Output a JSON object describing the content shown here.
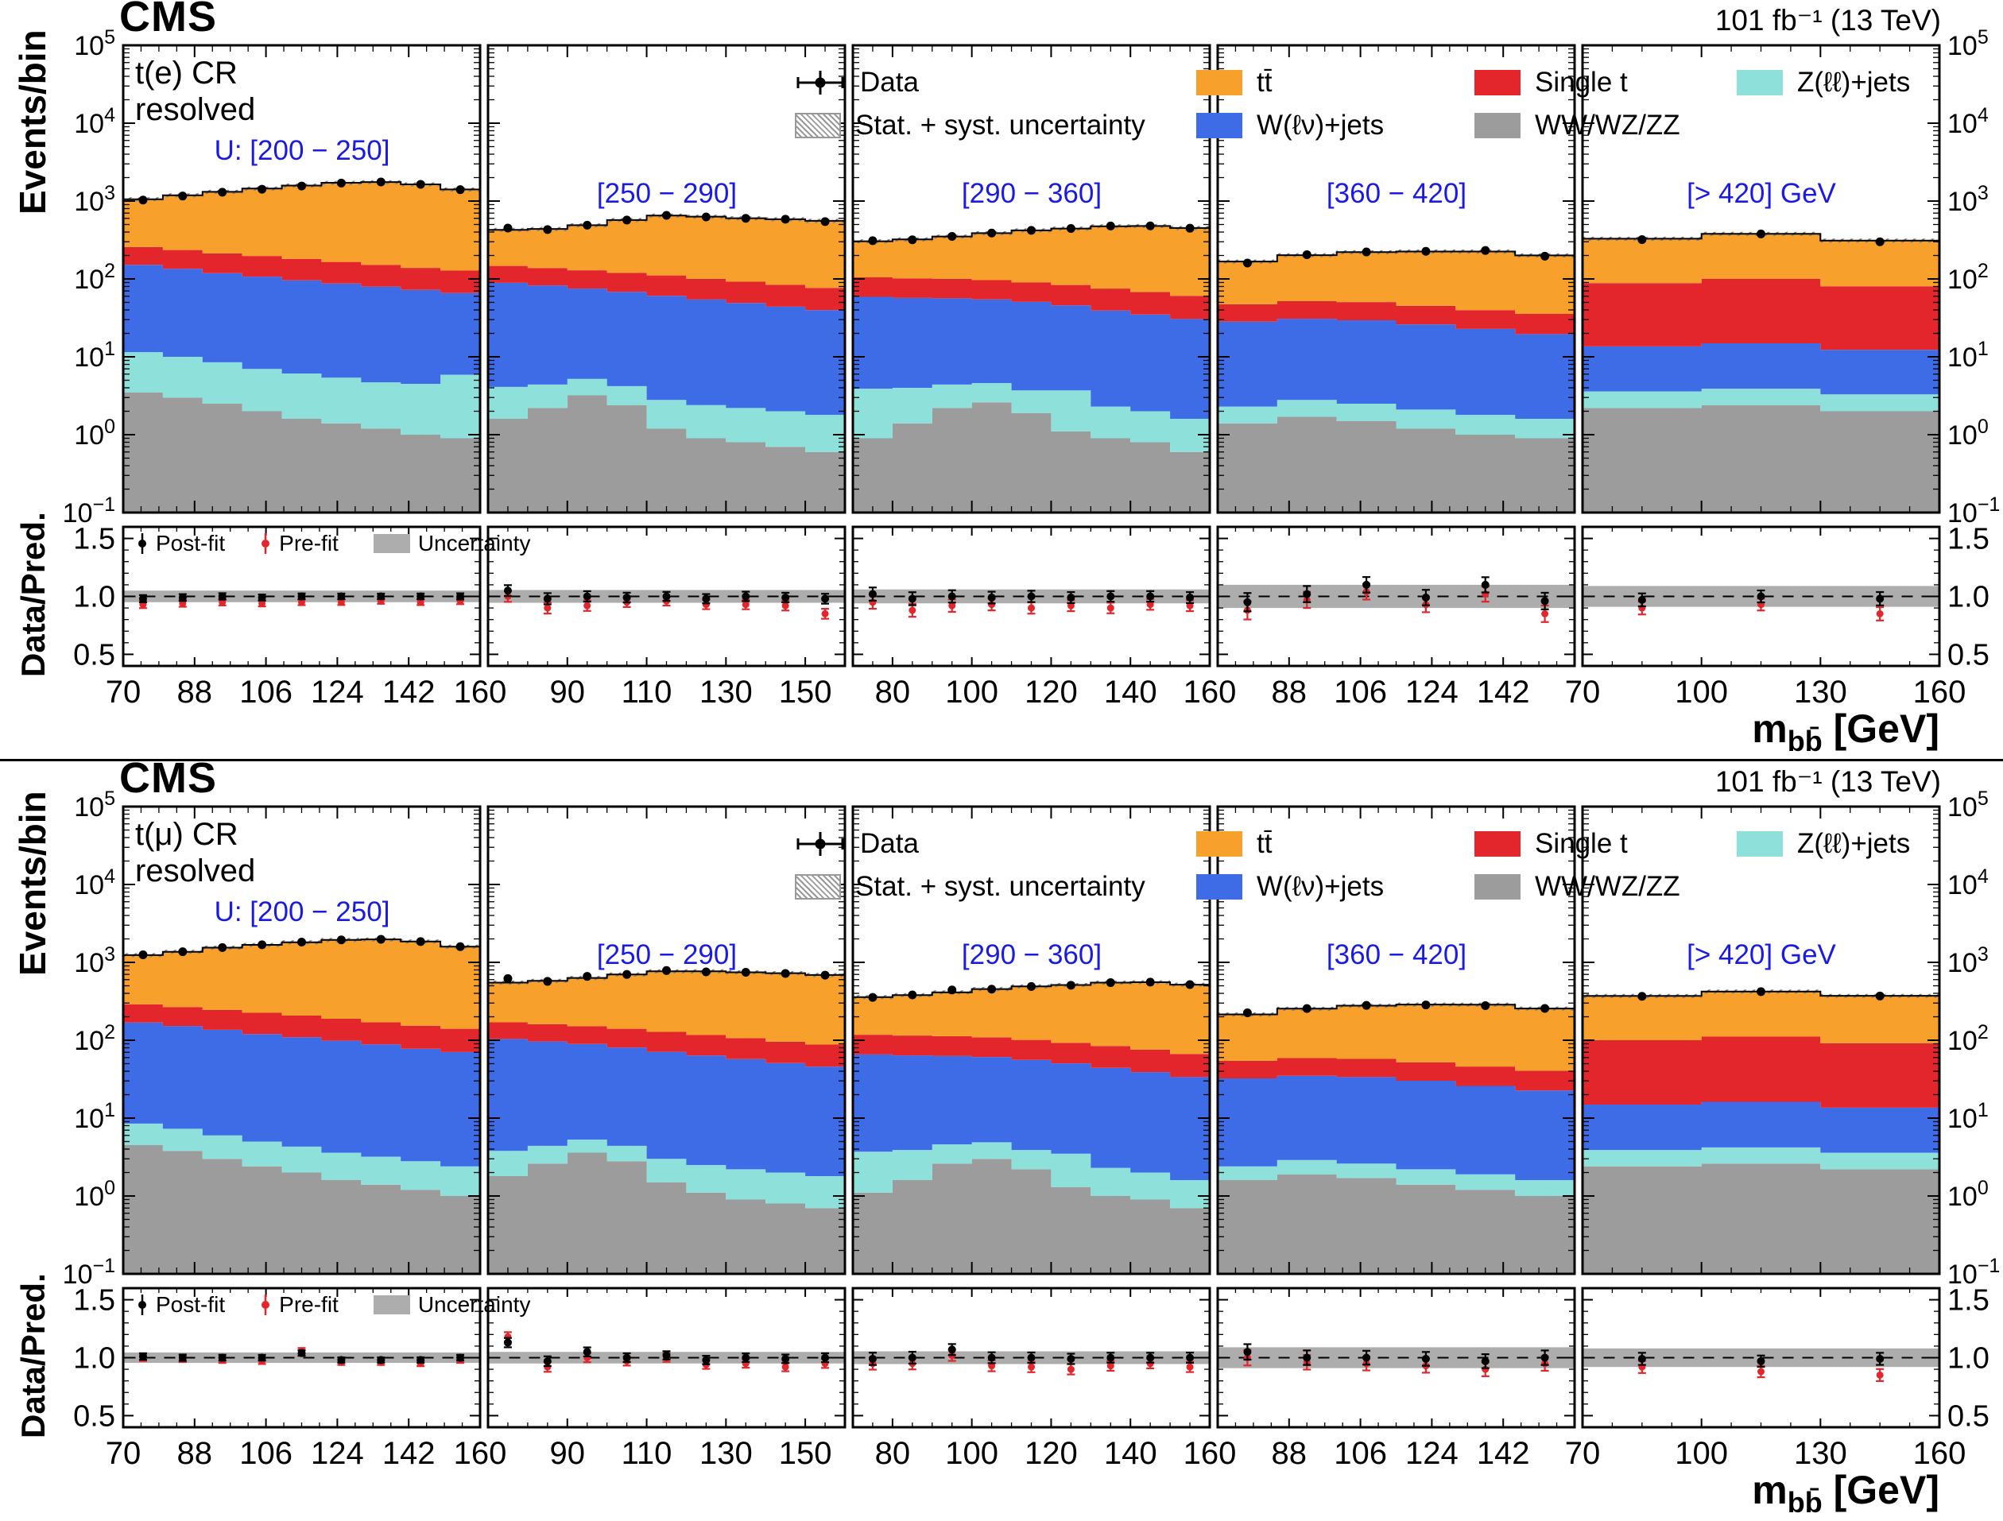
{
  "meta": {
    "experiment": "CMS",
    "lumi": "101 fb⁻¹ (13 TeV)"
  },
  "colors": {
    "ttbar": "#F7A12C",
    "single_t": "#E2262C",
    "w_jets": "#3E6BE6",
    "diboson": "#9C9C9C",
    "z_jets": "#8EE0DA",
    "prefit": "#E2262C",
    "ratio_band": "#ADADAD",
    "label_blue": "#1A1AE6"
  },
  "legend": {
    "data": "Data",
    "unc": "Stat. + syst. uncertainty",
    "ttbar": "tt̄",
    "w_jets": "W(ℓν)+jets",
    "single_t": "Single t",
    "diboson": "WW/WZ/ZZ",
    "z_jets": "Z(ℓℓ)+jets"
  },
  "ratio_legend": {
    "postfit": "Post-fit",
    "prefit": "Pre-fit",
    "unc": "Uncertainty"
  },
  "axes": {
    "ylabel_main": "Events/bin",
    "ylabel_ratio": "Data/Pred.",
    "xlabel_prefix": "m",
    "xlabel_sub": "bb̄",
    "xlabel_unit": " [GeV]",
    "x_range": [
      70,
      160
    ],
    "y_exponent_range": [
      -1,
      5
    ],
    "ratio_range": [
      0.5,
      1.5
    ],
    "ratio_ticks": [
      0.5,
      1.0,
      1.5
    ]
  },
  "chart_data": [
    {
      "type": "area",
      "region_line1": "t(e) CR",
      "region_line2": "resolved",
      "x_range": [
        70,
        160
      ],
      "unc_frac": 0.06,
      "series_order": [
        "diboson",
        "z_jets",
        "w_jets",
        "single_t",
        "ttbar"
      ],
      "panels": [
        {
          "recoil": "U: [200 − 250]",
          "x_ticks": [
            70,
            88,
            106,
            124,
            142,
            160
          ],
          "band": 0.05,
          "stacks": {
            "diboson": [
              3.5,
              3.0,
              2.5,
              2.0,
              1.6,
              1.4,
              1.2,
              1.0,
              0.9
            ],
            "z_jets": [
              8,
              7,
              6,
              5,
              4.5,
              4,
              3.5,
              3.5,
              5
            ],
            "w_jets": [
              140,
              125,
              110,
              100,
              90,
              82,
              75,
              68,
              60
            ],
            "single_t": [
              105,
              100,
              95,
              90,
              85,
              78,
              72,
              66,
              62
            ],
            "ttbar": [
              800,
              950,
              1100,
              1250,
              1400,
              1550,
              1600,
              1500,
              1280
            ]
          },
          "data": [
            1030,
            1160,
            1300,
            1420,
            1560,
            1700,
            1760,
            1640,
            1400
          ],
          "ratio_postfit": [
            0.98,
            0.99,
            1.0,
            0.99,
            1.0,
            1.0,
            1.0,
            1.0,
            1.0
          ],
          "ratio_prefit": [
            0.93,
            0.94,
            0.95,
            0.94,
            0.95,
            0.95,
            0.96,
            0.95,
            0.96
          ]
        },
        {
          "recoil": "[250 − 290]",
          "x_ticks": [
            90,
            110,
            130,
            150
          ],
          "band": 0.055,
          "stacks": {
            "diboson": [
              1.6,
              2.2,
              3.2,
              2.4,
              1.2,
              0.9,
              0.8,
              0.7,
              0.6
            ],
            "z_jets": [
              2.5,
              2.2,
              2.0,
              1.8,
              1.6,
              1.5,
              1.4,
              1.3,
              1.2
            ],
            "w_jets": [
              85,
              78,
              70,
              64,
              58,
              52,
              47,
              42,
              38
            ],
            "single_t": [
              58,
              56,
              54,
              52,
              50,
              46,
              43,
              40,
              37
            ],
            "ttbar": [
              280,
              300,
              360,
              450,
              540,
              530,
              510,
              500,
              480
            ]
          },
          "data": [
            450,
            430,
            490,
            570,
            655,
            625,
            600,
            585,
            545
          ],
          "ratio_postfit": [
            1.05,
            0.98,
            1.0,
            0.99,
            1.0,
            0.98,
            1.0,
            0.99,
            0.98
          ],
          "ratio_prefit": [
            1.0,
            0.9,
            0.92,
            0.95,
            0.96,
            0.93,
            0.93,
            0.92,
            0.85
          ]
        },
        {
          "recoil": "[290 − 360]",
          "x_ticks": [
            80,
            100,
            120,
            140,
            160
          ],
          "band": 0.06,
          "stacks": {
            "diboson": [
              0.9,
              1.4,
              2.2,
              2.6,
              1.9,
              1.1,
              0.9,
              0.8,
              0.6
            ],
            "z_jets": [
              3.0,
              2.6,
              2.2,
              2.0,
              1.8,
              2.6,
              1.4,
              1.2,
              1.0
            ],
            "w_jets": [
              55,
              53,
              52,
              50,
              47,
              42,
              37,
              33,
              29
            ],
            "single_t": [
              46,
              45,
              44,
              42,
              40,
              38,
              36,
              33,
              30
            ],
            "ttbar": [
              200,
              220,
              250,
              290,
              330,
              360,
              400,
              410,
              390
            ]
          },
          "data": [
            310,
            318,
            352,
            388,
            420,
            445,
            478,
            480,
            448
          ],
          "ratio_postfit": [
            1.02,
            0.98,
            1.0,
            0.99,
            1.0,
            0.99,
            1.0,
            1.0,
            0.99
          ],
          "ratio_prefit": [
            0.95,
            0.88,
            0.92,
            0.93,
            0.9,
            0.92,
            0.9,
            0.93,
            0.92
          ]
        },
        {
          "recoil": "[360 − 420]",
          "x_ticks": [
            88,
            106,
            124,
            142
          ],
          "band": 0.1,
          "stacks": {
            "diboson": [
              1.4,
              1.7,
              1.5,
              1.2,
              1.0,
              0.9
            ],
            "z_jets": [
              0.9,
              1.1,
              1.0,
              0.9,
              0.8,
              0.7
            ],
            "w_jets": [
              26,
              28,
              27,
              24,
              21,
              18
            ],
            "single_t": [
              19,
              21,
              21,
              19,
              17,
              16
            ],
            "ttbar": [
              120,
              150,
              170,
              180,
              185,
              165
            ]
          },
          "data": [
            160,
            205,
            222,
            226,
            232,
            196
          ],
          "ratio_postfit": [
            0.95,
            1.02,
            1.1,
            0.99,
            1.1,
            0.96
          ],
          "ratio_prefit": [
            0.88,
            0.97,
            1.04,
            0.93,
            1.02,
            0.85
          ]
        },
        {
          "recoil": "[> 420] GeV",
          "x_ticks": [
            70,
            100,
            130,
            160
          ],
          "band": 0.09,
          "stacks": {
            "diboson": [
              2.2,
              2.4,
              2.0
            ],
            "z_jets": [
              1.4,
              1.5,
              1.3
            ],
            "w_jets": [
              10,
              11,
              9
            ],
            "single_t": [
              75,
              85,
              68
            ],
            "ttbar": [
              240,
              280,
              230
            ]
          },
          "data": [
            320,
            378,
            300
          ],
          "ratio_postfit": [
            0.97,
            1.0,
            0.98
          ],
          "ratio_prefit": [
            0.9,
            0.93,
            0.85
          ]
        }
      ]
    },
    {
      "type": "area",
      "region_line1": "t(μ) CR",
      "region_line2": "resolved",
      "x_range": [
        70,
        160
      ],
      "unc_frac": 0.06,
      "series_order": [
        "diboson",
        "z_jets",
        "w_jets",
        "single_t",
        "ttbar"
      ],
      "panels": [
        {
          "recoil": "U: [200 − 250]",
          "x_ticks": [
            70,
            88,
            106,
            124,
            142,
            160
          ],
          "band": 0.045,
          "stacks": {
            "diboson": [
              4.5,
              3.8,
              3.0,
              2.4,
              2.0,
              1.6,
              1.4,
              1.2,
              1.0
            ],
            "z_jets": [
              4.0,
              3.5,
              3.0,
              2.6,
              2.3,
              2.0,
              1.8,
              1.6,
              1.4
            ],
            "w_jets": [
              160,
              145,
              130,
              115,
              105,
              95,
              85,
              75,
              68
            ],
            "single_t": [
              120,
              115,
              110,
              105,
              98,
              90,
              82,
              76,
              70
            ],
            "ttbar": [
              950,
              1100,
              1300,
              1450,
              1600,
              1750,
              1800,
              1700,
              1450
            ]
          },
          "data": [
            1250,
            1370,
            1550,
            1680,
            1820,
            1940,
            1975,
            1850,
            1590
          ],
          "ratio_postfit": [
            1.01,
            1.0,
            1.0,
            1.0,
            1.04,
            0.98,
            0.98,
            0.98,
            1.0
          ],
          "ratio_prefit": [
            1.0,
            0.99,
            0.98,
            0.97,
            1.06,
            0.96,
            0.96,
            0.95,
            0.98
          ]
        },
        {
          "recoil": "[250 − 290]",
          "x_ticks": [
            90,
            110,
            130,
            150
          ],
          "band": 0.05,
          "stacks": {
            "diboson": [
              1.8,
              2.6,
              3.6,
              2.8,
              1.5,
              1.1,
              0.9,
              0.8,
              0.7
            ],
            "z_jets": [
              2.0,
              1.8,
              1.7,
              1.6,
              1.5,
              1.4,
              1.3,
              1.2,
              1.1
            ],
            "w_jets": [
              100,
              92,
              84,
              76,
              68,
              61,
              55,
              49,
              44
            ],
            "single_t": [
              66,
              64,
              62,
              60,
              57,
              53,
              49,
              45,
              42
            ],
            "ttbar": [
              380,
              420,
              480,
              560,
              640,
              650,
              640,
              630,
              600
            ]
          },
          "data": [
            620,
            570,
            660,
            700,
            785,
            755,
            745,
            720,
            685
          ],
          "ratio_postfit": [
            1.13,
            0.97,
            1.05,
            1.0,
            1.02,
            0.98,
            1.0,
            0.99,
            1.0
          ],
          "ratio_prefit": [
            1.18,
            0.92,
            1.0,
            0.97,
            1.0,
            0.94,
            0.95,
            0.92,
            0.95
          ]
        },
        {
          "recoil": "[290 − 360]",
          "x_ticks": [
            80,
            100,
            120,
            140,
            160
          ],
          "band": 0.055,
          "stacks": {
            "diboson": [
              1.1,
              1.6,
              2.6,
              3.0,
              2.2,
              1.3,
              1.0,
              0.9,
              0.7
            ],
            "z_jets": [
              2.6,
              2.3,
              2.0,
              1.9,
              1.7,
              2.2,
              1.3,
              1.1,
              0.9
            ],
            "w_jets": [
              62,
              60,
              58,
              56,
              52,
              47,
              42,
              37,
              32
            ],
            "single_t": [
              52,
              51,
              50,
              48,
              45,
              42,
              40,
              37,
              33
            ],
            "ttbar": [
              240,
              265,
              300,
              345,
              390,
              420,
              465,
              480,
              450
            ]
          },
          "data": [
            355,
            382,
            442,
            452,
            490,
            508,
            550,
            558,
            518
          ],
          "ratio_postfit": [
            0.99,
            1.0,
            1.07,
            1.0,
            1.0,
            0.99,
            1.0,
            1.0,
            1.0
          ],
          "ratio_prefit": [
            0.95,
            0.95,
            1.02,
            0.93,
            0.92,
            0.9,
            0.93,
            0.95,
            0.92
          ]
        },
        {
          "recoil": "[360 − 420]",
          "x_ticks": [
            88,
            106,
            124,
            142
          ],
          "band": 0.09,
          "stacks": {
            "diboson": [
              1.6,
              1.9,
              1.7,
              1.4,
              1.2,
              1.0
            ],
            "z_jets": [
              0.8,
              1.0,
              0.9,
              0.8,
              0.7,
              0.6
            ],
            "w_jets": [
              30,
              32,
              31,
              28,
              24,
              21
            ],
            "single_t": [
              22,
              24,
              24,
              22,
              20,
              18
            ],
            "ttbar": [
              160,
              195,
              220,
              235,
              240,
              215
            ]
          },
          "data": [
            225,
            255,
            280,
            284,
            278,
            256
          ],
          "ratio_postfit": [
            1.05,
            1.0,
            1.0,
            0.99,
            0.97,
            1.0
          ],
          "ratio_prefit": [
            1.0,
            0.96,
            0.95,
            0.93,
            0.9,
            0.95
          ]
        },
        {
          "recoil": "[> 420] GeV",
          "x_ticks": [
            70,
            100,
            130,
            160
          ],
          "band": 0.08,
          "stacks": {
            "diboson": [
              2.4,
              2.6,
              2.2
            ],
            "z_jets": [
              1.5,
              1.6,
              1.4
            ],
            "w_jets": [
              11,
              12,
              10
            ],
            "single_t": [
              85,
              95,
              78
            ],
            "ttbar": [
              270,
              310,
              280
            ]
          },
          "data": [
            366,
            420,
            370
          ],
          "ratio_postfit": [
            0.99,
            0.97,
            0.99
          ],
          "ratio_prefit": [
            0.92,
            0.88,
            0.85
          ]
        }
      ]
    }
  ]
}
